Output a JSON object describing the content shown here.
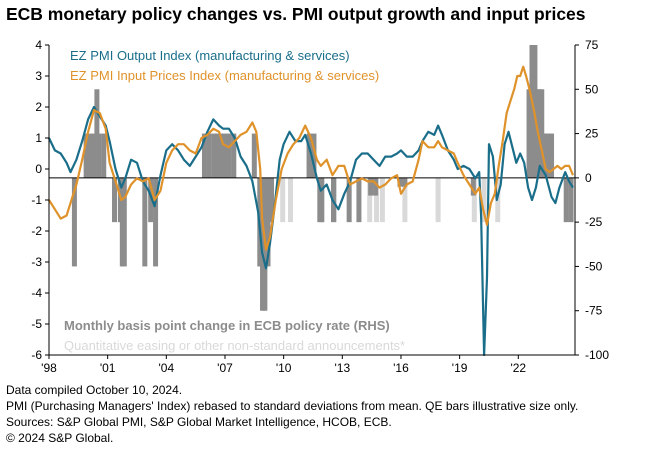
{
  "title": "ECB monetary policy changes vs. PMI output growth and input prices",
  "legend": [
    {
      "label": "EZ PMI Output Index (manufacturing & services)",
      "color": "#1a6e8a"
    },
    {
      "label": "EZ PMI Input Prices Index (manufacturing & services)",
      "color": "#e0922a"
    }
  ],
  "bar_labels": [
    {
      "label": "Monthly basis point change in ECB policy rate (RHS)",
      "color": "#8c8c8c"
    },
    {
      "label": "Quantitative easing or other non-standard announcements*",
      "color": "#d9d9d9"
    }
  ],
  "notes": [
    "Data compiled October 10, 2024.",
    "PMI (Purchasing Managers' Index) rebased to standard deviations from mean. QE bars illustrative size only.",
    "Sources: S&P Global PMI, S&P Global Market Intelligence, HCOB, ECB.",
    "© 2024 S&P Global."
  ],
  "chart_data": {
    "type": "line",
    "x_tick_labels": [
      "'98",
      "'01",
      "'04",
      "'07",
      "'10",
      "'13",
      "'16",
      "'19",
      "'22"
    ],
    "x_tick_years": [
      1998,
      2001,
      2004,
      2007,
      2010,
      2013,
      2016,
      2019,
      2022
    ],
    "xlim": [
      1998,
      2024.9
    ],
    "ylim_left": [
      -6,
      4
    ],
    "y_ticks_left": [
      4,
      3,
      2,
      1,
      0,
      -1,
      -2,
      -3,
      -4,
      -5,
      -6
    ],
    "ylim_right": [
      -100,
      75
    ],
    "y_ticks_right": [
      75,
      50,
      25,
      0,
      -25,
      -50,
      -75,
      -100
    ],
    "series": [
      {
        "name": "EZ PMI Output Index (manufacturing & services)",
        "color": "#1a6e8a",
        "axis": "left",
        "points": [
          [
            1998.0,
            1.0
          ],
          [
            1998.3,
            0.6
          ],
          [
            1998.6,
            0.5
          ],
          [
            1998.9,
            0.2
          ],
          [
            1999.1,
            -0.1
          ],
          [
            1999.4,
            0.3
          ],
          [
            1999.7,
            0.9
          ],
          [
            2000.0,
            1.6
          ],
          [
            2000.3,
            2.0
          ],
          [
            2000.6,
            1.7
          ],
          [
            2000.9,
            1.4
          ],
          [
            2001.1,
            0.9
          ],
          [
            2001.4,
            0.0
          ],
          [
            2001.7,
            -0.6
          ],
          [
            2001.9,
            -0.3
          ],
          [
            2002.2,
            0.3
          ],
          [
            2002.5,
            0.2
          ],
          [
            2002.8,
            -0.4
          ],
          [
            2003.1,
            -0.7
          ],
          [
            2003.4,
            -1.2
          ],
          [
            2003.7,
            -0.2
          ],
          [
            2004.0,
            0.6
          ],
          [
            2004.3,
            0.8
          ],
          [
            2004.6,
            0.6
          ],
          [
            2004.9,
            0.3
          ],
          [
            2005.2,
            0.1
          ],
          [
            2005.5,
            0.4
          ],
          [
            2005.8,
            0.7
          ],
          [
            2006.1,
            1.2
          ],
          [
            2006.4,
            1.6
          ],
          [
            2006.7,
            1.4
          ],
          [
            2006.9,
            1.3
          ],
          [
            2007.2,
            1.3
          ],
          [
            2007.5,
            1.0
          ],
          [
            2007.8,
            0.4
          ],
          [
            2008.1,
            0.1
          ],
          [
            2008.4,
            -0.4
          ],
          [
            2008.7,
            -1.4
          ],
          [
            2008.9,
            -2.7
          ],
          [
            2009.1,
            -3.2
          ],
          [
            2009.3,
            -2.4
          ],
          [
            2009.5,
            -1.4
          ],
          [
            2009.8,
            0.3
          ],
          [
            2010.0,
            0.8
          ],
          [
            2010.3,
            1.2
          ],
          [
            2010.6,
            0.9
          ],
          [
            2010.9,
            0.9
          ],
          [
            2011.1,
            1.1
          ],
          [
            2011.4,
            0.5
          ],
          [
            2011.7,
            -0.3
          ],
          [
            2011.9,
            -0.7
          ],
          [
            2012.2,
            -0.5
          ],
          [
            2012.5,
            -1.0
          ],
          [
            2012.8,
            -1.3
          ],
          [
            2013.1,
            -0.8
          ],
          [
            2013.4,
            -0.4
          ],
          [
            2013.7,
            0.3
          ],
          [
            2014.0,
            0.5
          ],
          [
            2014.3,
            0.5
          ],
          [
            2014.6,
            0.3
          ],
          [
            2014.9,
            0.1
          ],
          [
            2015.2,
            0.4
          ],
          [
            2015.5,
            0.4
          ],
          [
            2015.8,
            0.5
          ],
          [
            2016.0,
            0.6
          ],
          [
            2016.3,
            0.4
          ],
          [
            2016.6,
            0.4
          ],
          [
            2016.9,
            0.6
          ],
          [
            2017.1,
            0.9
          ],
          [
            2017.4,
            1.2
          ],
          [
            2017.7,
            1.1
          ],
          [
            2017.9,
            1.4
          ],
          [
            2018.1,
            1.1
          ],
          [
            2018.4,
            0.6
          ],
          [
            2018.7,
            0.3
          ],
          [
            2018.9,
            0.0
          ],
          [
            2019.2,
            0.1
          ],
          [
            2019.5,
            0.0
          ],
          [
            2019.8,
            -0.3
          ],
          [
            2020.0,
            -0.1
          ],
          [
            2020.1,
            -1.5
          ],
          [
            2020.25,
            -6.0
          ],
          [
            2020.4,
            -3.5
          ],
          [
            2020.5,
            0.8
          ],
          [
            2020.7,
            0.4
          ],
          [
            2020.9,
            -1.0
          ],
          [
            2021.1,
            -0.5
          ],
          [
            2021.3,
            0.8
          ],
          [
            2021.5,
            1.2
          ],
          [
            2021.7,
            0.7
          ],
          [
            2021.9,
            0.2
          ],
          [
            2022.1,
            0.5
          ],
          [
            2022.3,
            0.2
          ],
          [
            2022.5,
            -0.6
          ],
          [
            2022.7,
            -1.0
          ],
          [
            2022.9,
            -0.6
          ],
          [
            2023.1,
            0.1
          ],
          [
            2023.4,
            -0.2
          ],
          [
            2023.7,
            -0.9
          ],
          [
            2023.9,
            -1.1
          ],
          [
            2024.1,
            -0.6
          ],
          [
            2024.4,
            -0.1
          ],
          [
            2024.6,
            -0.4
          ],
          [
            2024.8,
            -0.6
          ]
        ]
      },
      {
        "name": "EZ PMI Input Prices Index (manufacturing & services)",
        "color": "#e0922a",
        "axis": "left",
        "points": [
          [
            1998.0,
            -1.0
          ],
          [
            1998.3,
            -1.3
          ],
          [
            1998.6,
            -1.6
          ],
          [
            1998.9,
            -1.5
          ],
          [
            1999.1,
            -1.1
          ],
          [
            1999.4,
            -0.5
          ],
          [
            1999.7,
            0.3
          ],
          [
            2000.0,
            1.2
          ],
          [
            2000.3,
            1.9
          ],
          [
            2000.6,
            1.8
          ],
          [
            2000.9,
            1.3
          ],
          [
            2001.1,
            0.2
          ],
          [
            2001.4,
            -0.4
          ],
          [
            2001.7,
            -1.0
          ],
          [
            2001.9,
            -0.9
          ],
          [
            2002.2,
            -0.5
          ],
          [
            2002.5,
            -0.3
          ],
          [
            2002.8,
            -0.4
          ],
          [
            2003.1,
            -0.3
          ],
          [
            2003.4,
            -1.0
          ],
          [
            2003.7,
            -0.7
          ],
          [
            2004.0,
            0.2
          ],
          [
            2004.3,
            0.6
          ],
          [
            2004.6,
            0.8
          ],
          [
            2004.9,
            0.8
          ],
          [
            2005.2,
            0.6
          ],
          [
            2005.5,
            0.5
          ],
          [
            2005.8,
            1.0
          ],
          [
            2006.1,
            1.1
          ],
          [
            2006.4,
            1.3
          ],
          [
            2006.7,
            1.2
          ],
          [
            2006.9,
            0.8
          ],
          [
            2007.2,
            0.7
          ],
          [
            2007.5,
            0.9
          ],
          [
            2007.8,
            1.1
          ],
          [
            2008.1,
            1.2
          ],
          [
            2008.4,
            1.5
          ],
          [
            2008.6,
            1.2
          ],
          [
            2008.8,
            0.0
          ],
          [
            2008.9,
            -1.6
          ],
          [
            2009.1,
            -2.6
          ],
          [
            2009.3,
            -2.2
          ],
          [
            2009.6,
            -1.0
          ],
          [
            2009.9,
            0.0
          ],
          [
            2010.2,
            0.5
          ],
          [
            2010.5,
            0.8
          ],
          [
            2010.8,
            1.0
          ],
          [
            2011.1,
            1.4
          ],
          [
            2011.4,
            1.0
          ],
          [
            2011.7,
            0.3
          ],
          [
            2011.9,
            0.1
          ],
          [
            2012.2,
            0.3
          ],
          [
            2012.5,
            -0.2
          ],
          [
            2012.8,
            0.1
          ],
          [
            2013.1,
            0.1
          ],
          [
            2013.4,
            -0.5
          ],
          [
            2013.7,
            -0.4
          ],
          [
            2014.0,
            -0.3
          ],
          [
            2014.3,
            -0.4
          ],
          [
            2014.6,
            -0.4
          ],
          [
            2014.9,
            -0.6
          ],
          [
            2015.2,
            -0.5
          ],
          [
            2015.5,
            -0.3
          ],
          [
            2015.8,
            -0.2
          ],
          [
            2016.0,
            -0.8
          ],
          [
            2016.3,
            -0.5
          ],
          [
            2016.6,
            -0.4
          ],
          [
            2016.9,
            0.3
          ],
          [
            2017.1,
            0.9
          ],
          [
            2017.4,
            0.7
          ],
          [
            2017.7,
            0.7
          ],
          [
            2017.9,
            0.9
          ],
          [
            2018.1,
            0.7
          ],
          [
            2018.4,
            0.6
          ],
          [
            2018.7,
            0.5
          ],
          [
            2018.9,
            0.2
          ],
          [
            2019.2,
            -0.2
          ],
          [
            2019.5,
            -0.5
          ],
          [
            2019.8,
            -0.8
          ],
          [
            2020.0,
            -0.6
          ],
          [
            2020.2,
            -1.3
          ],
          [
            2020.4,
            -1.8
          ],
          [
            2020.6,
            -1.1
          ],
          [
            2020.8,
            -0.8
          ],
          [
            2021.0,
            0.1
          ],
          [
            2021.2,
            0.9
          ],
          [
            2021.4,
            1.8
          ],
          [
            2021.6,
            2.2
          ],
          [
            2021.8,
            2.6
          ],
          [
            2021.95,
            3.0
          ],
          [
            2022.1,
            3.0
          ],
          [
            2022.25,
            3.3
          ],
          [
            2022.4,
            3.0
          ],
          [
            2022.6,
            2.5
          ],
          [
            2022.8,
            1.9
          ],
          [
            2023.0,
            1.2
          ],
          [
            2023.2,
            0.6
          ],
          [
            2023.4,
            0.0
          ],
          [
            2023.6,
            -0.1
          ],
          [
            2023.8,
            0.0
          ],
          [
            2024.0,
            0.1
          ],
          [
            2024.2,
            0.0
          ],
          [
            2024.4,
            0.1
          ],
          [
            2024.6,
            0.1
          ],
          [
            2024.8,
            -0.2
          ]
        ]
      }
    ],
    "policy_rate_changes_bp": [
      [
        1999.3,
        -50
      ],
      [
        1999.9,
        25
      ],
      [
        2000.1,
        25
      ],
      [
        2000.3,
        25
      ],
      [
        2000.45,
        50
      ],
      [
        2000.55,
        25
      ],
      [
        2000.8,
        25
      ],
      [
        2001.35,
        -25
      ],
      [
        2001.65,
        -25
      ],
      [
        2001.75,
        -50
      ],
      [
        2001.85,
        -50
      ],
      [
        2002.9,
        -50
      ],
      [
        2003.2,
        -25
      ],
      [
        2003.45,
        -50
      ],
      [
        2005.95,
        25
      ],
      [
        2006.2,
        25
      ],
      [
        2006.45,
        25
      ],
      [
        2006.6,
        25
      ],
      [
        2006.8,
        25
      ],
      [
        2006.95,
        25
      ],
      [
        2007.2,
        25
      ],
      [
        2007.45,
        25
      ],
      [
        2008.5,
        25
      ],
      [
        2008.78,
        -50
      ],
      [
        2008.85,
        -50
      ],
      [
        2008.92,
        -75
      ],
      [
        2009.04,
        -75
      ],
      [
        2009.2,
        -50
      ],
      [
        2009.3,
        -25
      ],
      [
        2009.38,
        -25
      ],
      [
        2011.3,
        25
      ],
      [
        2011.55,
        25
      ],
      [
        2011.85,
        -25
      ],
      [
        2011.95,
        -25
      ],
      [
        2012.55,
        -25
      ],
      [
        2013.35,
        -25
      ],
      [
        2013.85,
        -25
      ],
      [
        2014.45,
        -10
      ],
      [
        2014.7,
        -10
      ],
      [
        2015.95,
        -5
      ],
      [
        2016.2,
        -5
      ],
      [
        2019.7,
        -10
      ],
      [
        2022.55,
        50
      ],
      [
        2022.7,
        75
      ],
      [
        2022.85,
        75
      ],
      [
        2022.95,
        50
      ],
      [
        2023.1,
        50
      ],
      [
        2023.2,
        50
      ],
      [
        2023.35,
        25
      ],
      [
        2023.45,
        25
      ],
      [
        2023.55,
        25
      ],
      [
        2023.7,
        25
      ],
      [
        2024.45,
        -25
      ],
      [
        2024.7,
        -25
      ]
    ],
    "qe_announcements": [
      [
        2008.95,
        -25
      ],
      [
        2009.35,
        -25
      ],
      [
        2009.95,
        -25
      ],
      [
        2010.35,
        -25
      ],
      [
        2011.95,
        -25
      ],
      [
        2012.6,
        -25
      ],
      [
        2014.4,
        -25
      ],
      [
        2014.75,
        -25
      ],
      [
        2015.05,
        -25
      ],
      [
        2016.2,
        -25
      ],
      [
        2017.9,
        -25
      ],
      [
        2019.75,
        -25
      ],
      [
        2020.25,
        -25
      ],
      [
        2020.95,
        -25
      ]
    ]
  }
}
